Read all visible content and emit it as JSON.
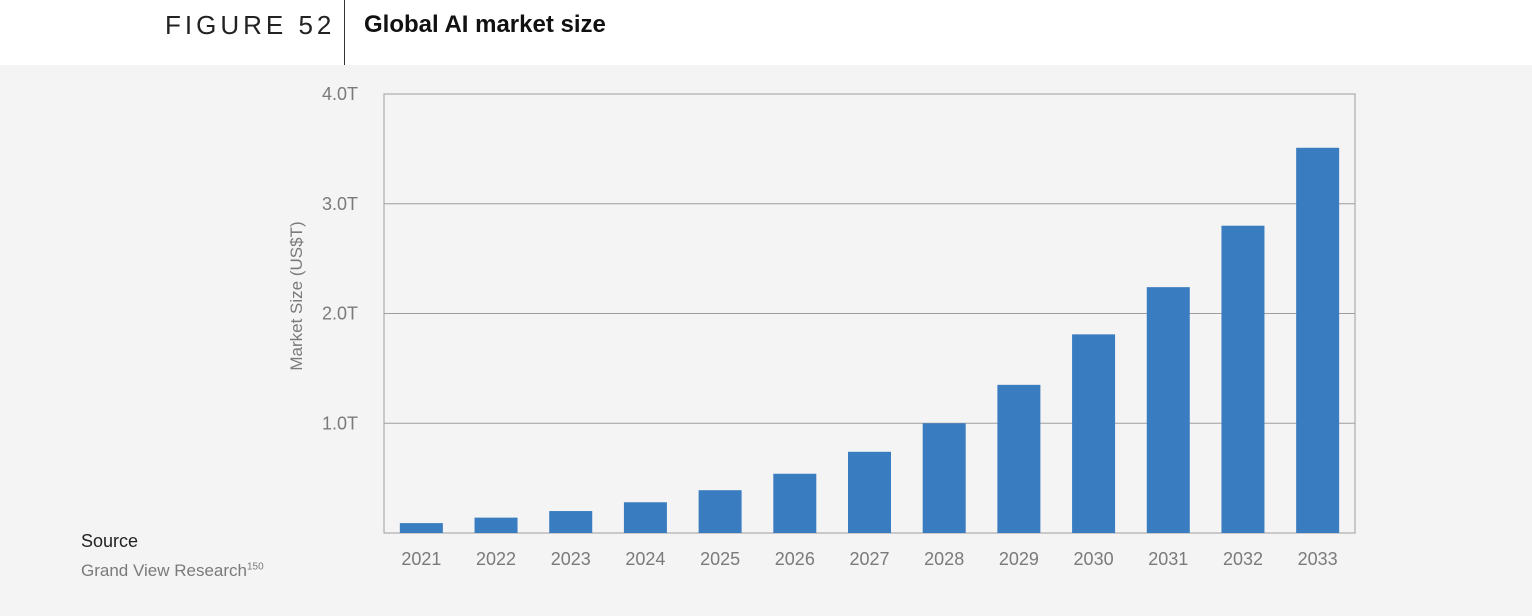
{
  "header": {
    "figure_label": "FIGURE 52",
    "title": "Global AI market size"
  },
  "source": {
    "label": "Source",
    "text": "Grand View Research",
    "footnote": "150"
  },
  "colors": {
    "bar": "#3a7cc0",
    "grid": "#9e9e9e",
    "panel_background": "#f4f4f4"
  },
  "chart_data": {
    "type": "bar",
    "title": "Global AI market size",
    "xlabel": "",
    "ylabel": "Market Size (US$T)",
    "ylim": [
      0,
      4.0
    ],
    "y_ticks": [
      {
        "value": 1.0,
        "label": "1.0T"
      },
      {
        "value": 2.0,
        "label": "2.0T"
      },
      {
        "value": 3.0,
        "label": "3.0T"
      },
      {
        "value": 4.0,
        "label": "4.0T"
      }
    ],
    "categories": [
      "2021",
      "2022",
      "2023",
      "2024",
      "2025",
      "2026",
      "2027",
      "2028",
      "2029",
      "2030",
      "2031",
      "2032",
      "2033"
    ],
    "values": [
      0.09,
      0.14,
      0.2,
      0.28,
      0.39,
      0.54,
      0.74,
      1.0,
      1.35,
      1.81,
      2.24,
      2.8,
      3.51
    ],
    "grid": true,
    "legend": "none"
  }
}
